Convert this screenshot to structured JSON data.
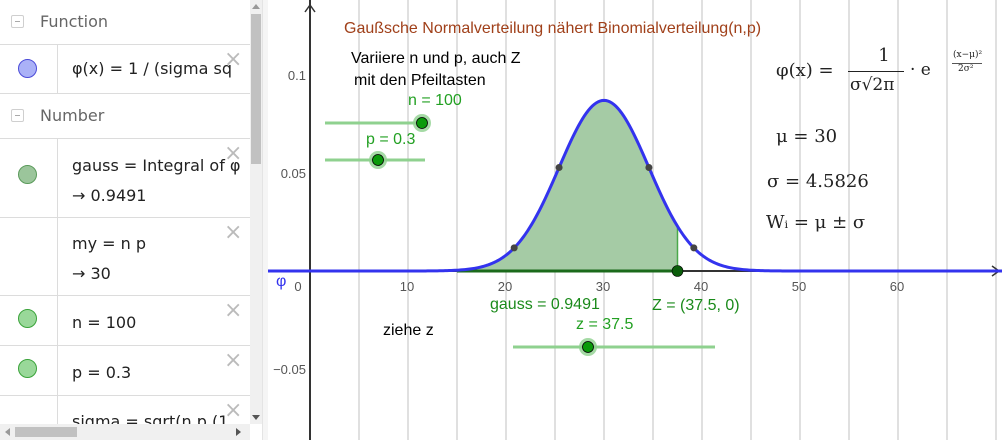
{
  "algebra": {
    "sections": [
      {
        "label": "Function"
      },
      {
        "label": "Number"
      }
    ],
    "rows": [
      {
        "definition": "φ(x) = 1 / (sigma sq",
        "value": "",
        "marble_color": "#aab1f7",
        "marble_border": "#4b4bd8",
        "has_marble": true
      },
      {
        "definition": "gauss = Integral of φ",
        "value": "→  0.9491",
        "marble_color": "#9bc59b",
        "marble_border": "#5a9a5a",
        "has_marble": true
      },
      {
        "definition": "my = n  p",
        "value": "→  30",
        "marble_color": "",
        "marble_border": "",
        "has_marble": false
      },
      {
        "definition": "n = 100",
        "value": "",
        "marble_color": "#99d899",
        "marble_border": "#3aa33a",
        "has_marble": true
      },
      {
        "definition": "p = 0.3",
        "value": "",
        "marble_color": "#99d899",
        "marble_border": "#3aa33a",
        "has_marble": true
      },
      {
        "definition": "sigma = sqrt(n p (1",
        "value": "",
        "marble_color": "",
        "marble_border": "",
        "has_marble": false
      }
    ],
    "close_glyph": "×"
  },
  "graphics": {
    "title": "Gaußsche Normalverteilung nähert Binomialverteilung(n,p)",
    "title_color": "#a0401a",
    "instructions_line1": "Variiere n und p, auch Z",
    "instructions_line2": "mit den Pfeiltasten",
    "drag_hint": "ziehe z",
    "function_label": "φ",
    "x_ticks": [
      0,
      10,
      20,
      30,
      40,
      50,
      60
    ],
    "y_ticks": [
      {
        "value": 0.1,
        "label": "0.1"
      },
      {
        "value": 0.05,
        "label": "0.05"
      },
      {
        "value": -0.05,
        "label": "−0.05"
      }
    ],
    "sliders": {
      "n": {
        "label": "n = 100",
        "value": 100
      },
      "p": {
        "label": "p = 0.3",
        "value": 0.3
      },
      "z": {
        "label": "z = 37.5",
        "value": 37.5
      }
    },
    "gauss_label": "gauss = 0.9491",
    "point_Z_label": "Z = (37.5, 0)",
    "formula": {
      "lhs": "φ(x) =",
      "numerator": "1",
      "denominator": "σ√2π",
      "exp_base": "· e",
      "exp_num": "(x−μ)²",
      "exp_den": "2σ²"
    },
    "mu_text": "μ = 30",
    "sigma_text": "σ = 4.5826",
    "wi_text": "Wᵢ = μ ± σ",
    "colors": {
      "curve": "#3333ee",
      "fill": "#a5cba5",
      "fill_edge": "#1b6a1b",
      "slider_line": "#8fd18f",
      "slider_knob": "#0a9a0a",
      "green_text": "#1a8a1a",
      "point_Z": "#0b5e0b",
      "grid": "#c0c0c0",
      "axis": "#333333"
    }
  },
  "chart_data": {
    "type": "line",
    "title": "Gaußsche Normalverteilung nähert Binomialverteilung(n,p)",
    "xlabel": "",
    "ylabel": "φ",
    "xlim": [
      -4,
      70
    ],
    "ylim": [
      -0.085,
      0.138
    ],
    "mu": 30,
    "sigma": 4.5826,
    "shaded_from": 15,
    "shaded_to": 37.5,
    "area": 0.9491,
    "marked_points_x": [
      20.8348,
      25.4174,
      34.5826,
      39.1652
    ],
    "series": [
      {
        "name": "φ(x)",
        "formula": "1/(sigma*sqrt(2pi)) * exp(-(x-mu)^2/(2 sigma^2))"
      }
    ],
    "peak_value": 0.0871
  }
}
